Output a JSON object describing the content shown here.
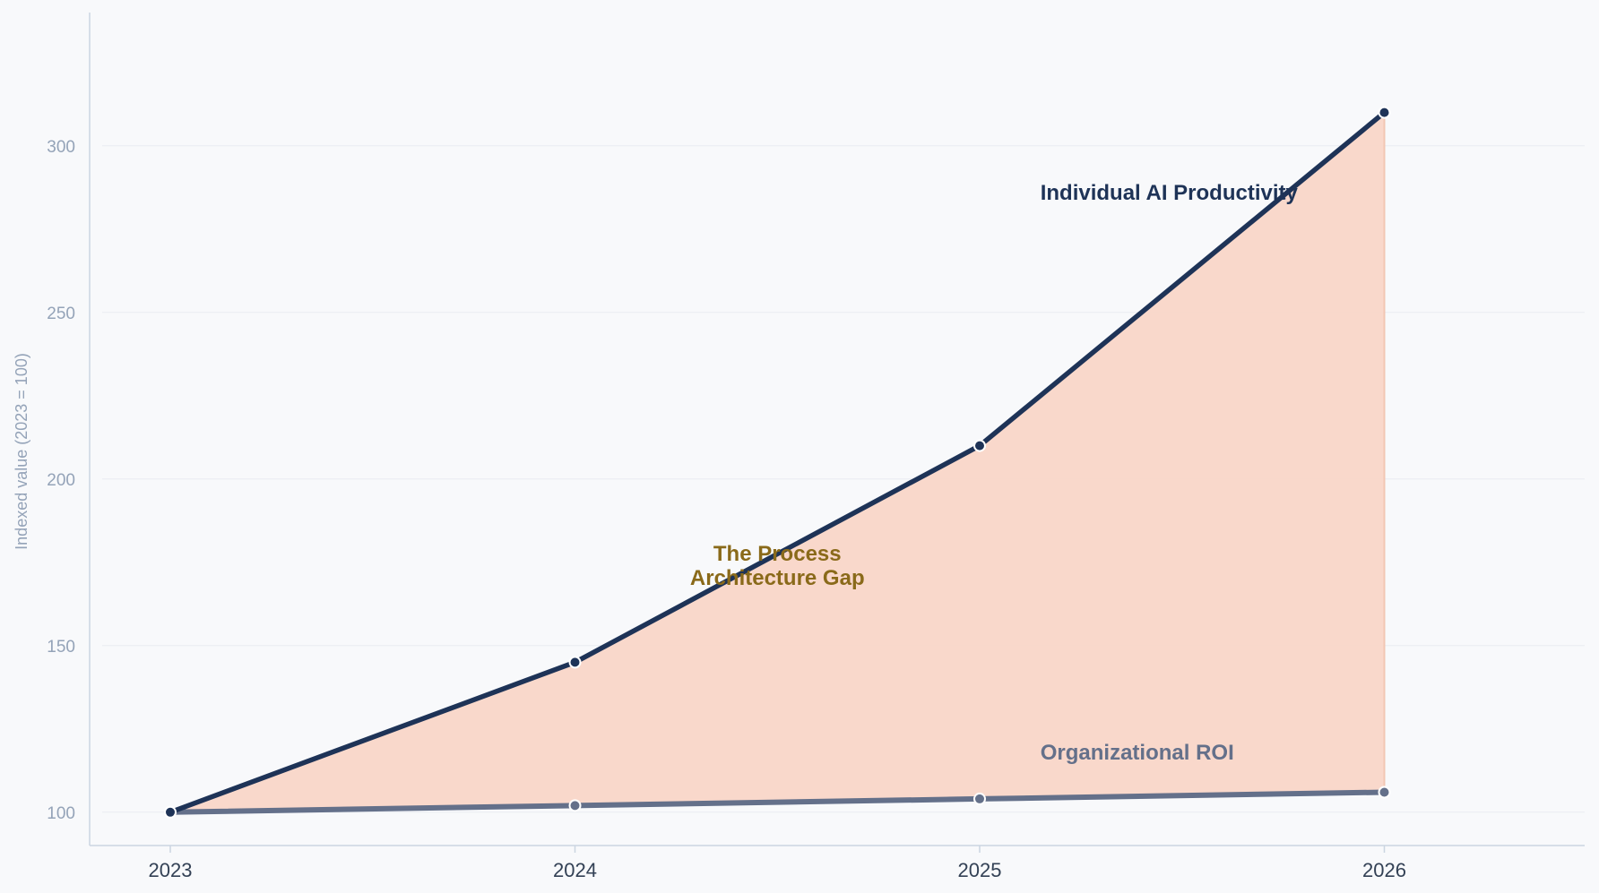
{
  "chart_data": {
    "type": "line",
    "title": "",
    "xlabel": "",
    "ylabel": "Indexed value (2023 = 100)",
    "x": [
      "2023",
      "2024",
      "2025",
      "2026"
    ],
    "yticks": [
      100,
      150,
      200,
      250,
      300
    ],
    "ylim": [
      90,
      340
    ],
    "grid": "horizontal",
    "legend": "none",
    "series": [
      {
        "name": "Individual AI Productivity",
        "values": [
          100,
          145,
          210,
          310
        ],
        "color": "#1e3357"
      },
      {
        "name": "Organizational ROI",
        "values": [
          100,
          102,
          104,
          106
        ],
        "color": "#64708a"
      }
    ],
    "fill_between": {
      "color": "#f9d6c8"
    },
    "annotations": [
      {
        "key": "gap",
        "lines": [
          "The Process",
          "Architecture Gap"
        ],
        "color": "#8a6a1a",
        "anchor_x": "2024.5",
        "anchor_y": 174
      },
      {
        "key": "individual",
        "lines": [
          "Individual AI Productivity"
        ],
        "color": "#1e3357",
        "anchor_x": "2025.15",
        "anchor_y": 286
      },
      {
        "key": "org",
        "lines": [
          "Organizational ROI"
        ],
        "color": "#64708a",
        "anchor_x": "2025.15",
        "anchor_y": 118
      }
    ]
  }
}
